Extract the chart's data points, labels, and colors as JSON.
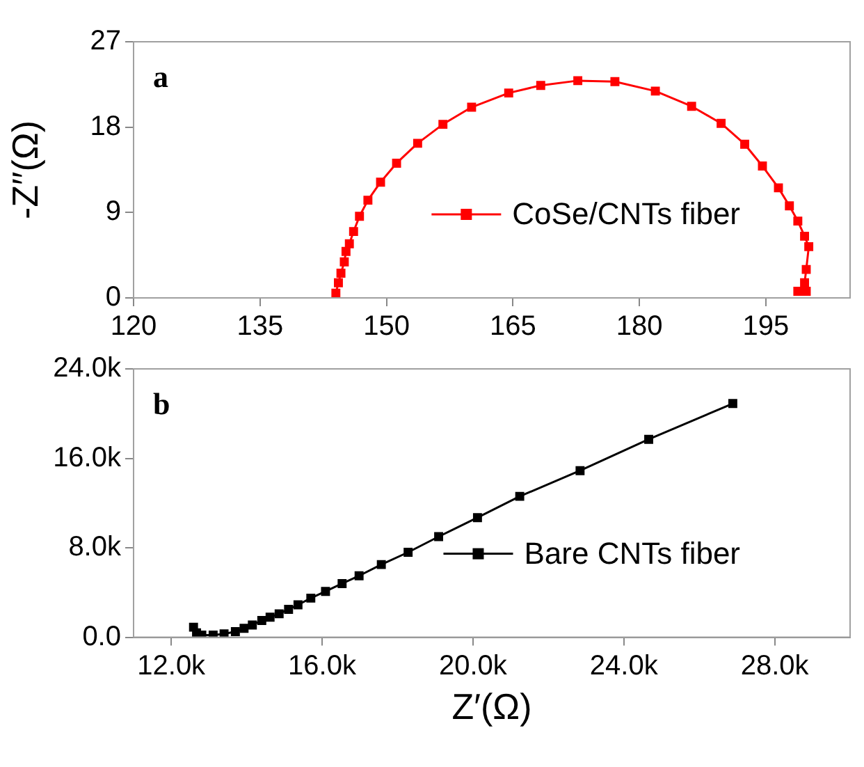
{
  "chart_data": [
    {
      "type": "line",
      "ylabel": "-Z′′(Ω)",
      "annotations": [
        "a"
      ],
      "xlim": [
        120,
        205
      ],
      "xticks": [
        120,
        135,
        150,
        165,
        180,
        195
      ],
      "ylim": [
        0,
        27
      ],
      "yticks": [
        0,
        9,
        18,
        27
      ],
      "grid": false,
      "legend": "bottom right",
      "marker": "square",
      "line_style": "solid",
      "series": [
        {
          "name": "CoSe/CNTs fiber",
          "color": "#ff0000",
          "x": [
            144.0,
            144.3,
            144.6,
            145.0,
            145.2,
            145.6,
            146.1,
            146.8,
            147.8,
            149.3,
            151.2,
            153.7,
            156.7,
            160.1,
            164.5,
            168.3,
            172.7,
            177.1,
            181.9,
            186.2,
            189.7,
            192.5,
            194.6,
            196.5,
            197.8,
            198.8,
            199.6,
            200.1,
            199.8,
            199.6,
            199.8,
            198.8
          ],
          "values": [
            0.5,
            1.6,
            2.6,
            3.8,
            4.9,
            5.7,
            7.0,
            8.6,
            10.3,
            12.2,
            14.2,
            16.3,
            18.3,
            20.1,
            21.6,
            22.4,
            22.9,
            22.8,
            21.8,
            20.2,
            18.4,
            16.2,
            13.9,
            11.6,
            9.7,
            8.1,
            6.5,
            5.4,
            3.0,
            1.6,
            0.7,
            0.7
          ]
        }
      ]
    },
    {
      "type": "line",
      "xlabel": "Z′(Ω)",
      "annotations": [
        "b"
      ],
      "xlim": [
        11000,
        30000
      ],
      "xticks": [
        {
          "value": 12000,
          "label": "12.0k"
        },
        {
          "value": 16000,
          "label": "16.0k"
        },
        {
          "value": 20000,
          "label": "20.0k"
        },
        {
          "value": 24000,
          "label": "24.0k"
        },
        {
          "value": 28000,
          "label": "28.0k"
        }
      ],
      "ylim": [
        0,
        24000
      ],
      "yticks": [
        {
          "value": 0,
          "label": "0.0"
        },
        {
          "value": 8000,
          "label": "8.0k"
        },
        {
          "value": 16000,
          "label": "16.0k"
        },
        {
          "value": 24000,
          "label": "24.0k"
        }
      ],
      "grid": false,
      "legend": "bottom right",
      "marker": "square",
      "line_style": "solid",
      "series": [
        {
          "name": "Bare CNTs fiber",
          "color": "#000000",
          "x": [
            12590,
            12670,
            12810,
            13110,
            13400,
            13700,
            13930,
            14150,
            14400,
            14620,
            14860,
            15110,
            15360,
            15700,
            16090,
            16530,
            16980,
            17570,
            18280,
            19090,
            20120,
            21240,
            22840,
            24660,
            26890
          ],
          "values": [
            900,
            400,
            200,
            200,
            300,
            500,
            800,
            1100,
            1500,
            1800,
            2100,
            2500,
            2900,
            3500,
            4100,
            4800,
            5500,
            6500,
            7600,
            9000,
            10700,
            12600,
            14900,
            17700,
            20900
          ]
        }
      ]
    }
  ]
}
